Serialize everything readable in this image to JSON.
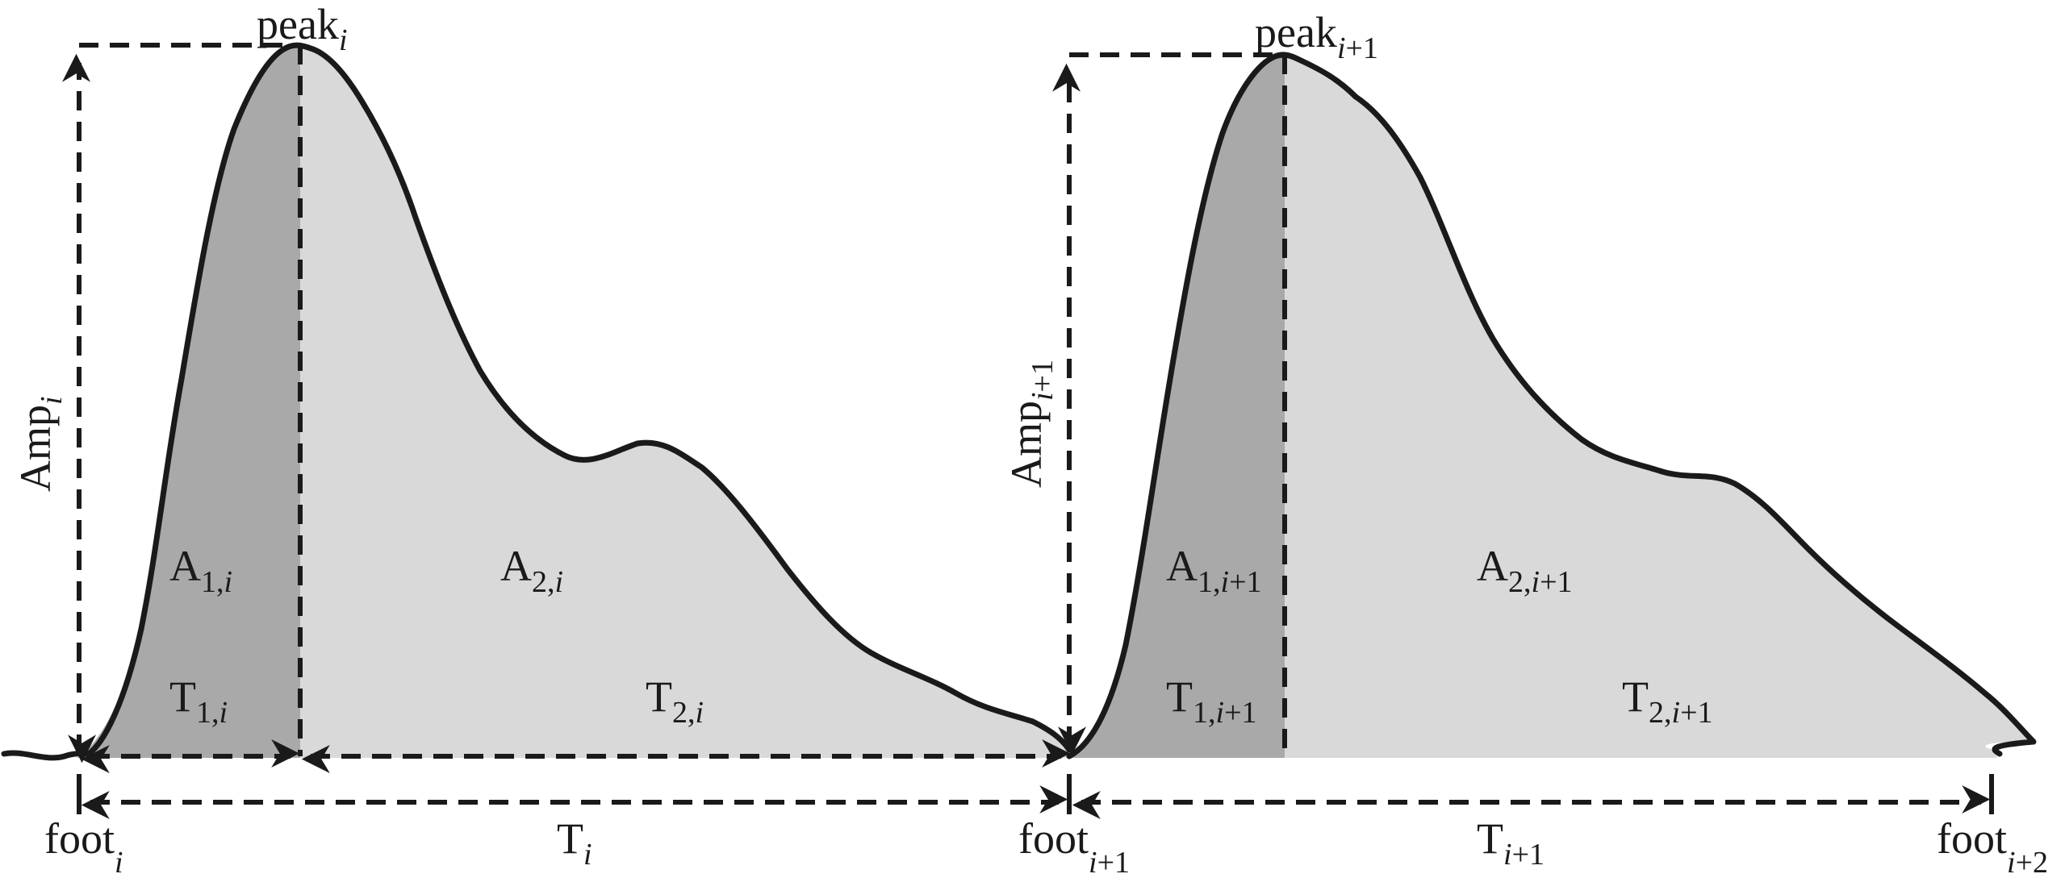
{
  "colors": {
    "dark_area": "#a9a9a9",
    "light_area": "#d9d9d9",
    "ink": "#1a1a1a"
  },
  "labels": {
    "peak_i": {
      "base": "peak",
      "sub": "i"
    },
    "peak_i1": {
      "base": "peak",
      "sub": "i+1"
    },
    "amp_i": {
      "base": "Amp",
      "sub": "i"
    },
    "amp_i1": {
      "base": "Amp",
      "sub": "i+1"
    },
    "a1_i": {
      "base": "A",
      "sub": "1,i"
    },
    "a2_i": {
      "base": "A",
      "sub": "2,i"
    },
    "a1_i1": {
      "base": "A",
      "sub": "1,i+1"
    },
    "a2_i1": {
      "base": "A",
      "sub": "2,i+1"
    },
    "t1_i": {
      "base": "T",
      "sub": "1,i"
    },
    "t2_i": {
      "base": "T",
      "sub": "2,i"
    },
    "t1_i1": {
      "base": "T",
      "sub": "1,i+1"
    },
    "t2_i1": {
      "base": "T",
      "sub": "2,i+1"
    },
    "t_i": {
      "base": "T",
      "sub": "i"
    },
    "t_i1": {
      "base": "T",
      "sub": "i+1"
    },
    "foot_i": {
      "base": "foot",
      "sub": "i"
    },
    "foot_i1": {
      "base": "foot",
      "sub": "i+1"
    },
    "foot_i2": {
      "base": "foot",
      "sub": "i+2"
    }
  }
}
